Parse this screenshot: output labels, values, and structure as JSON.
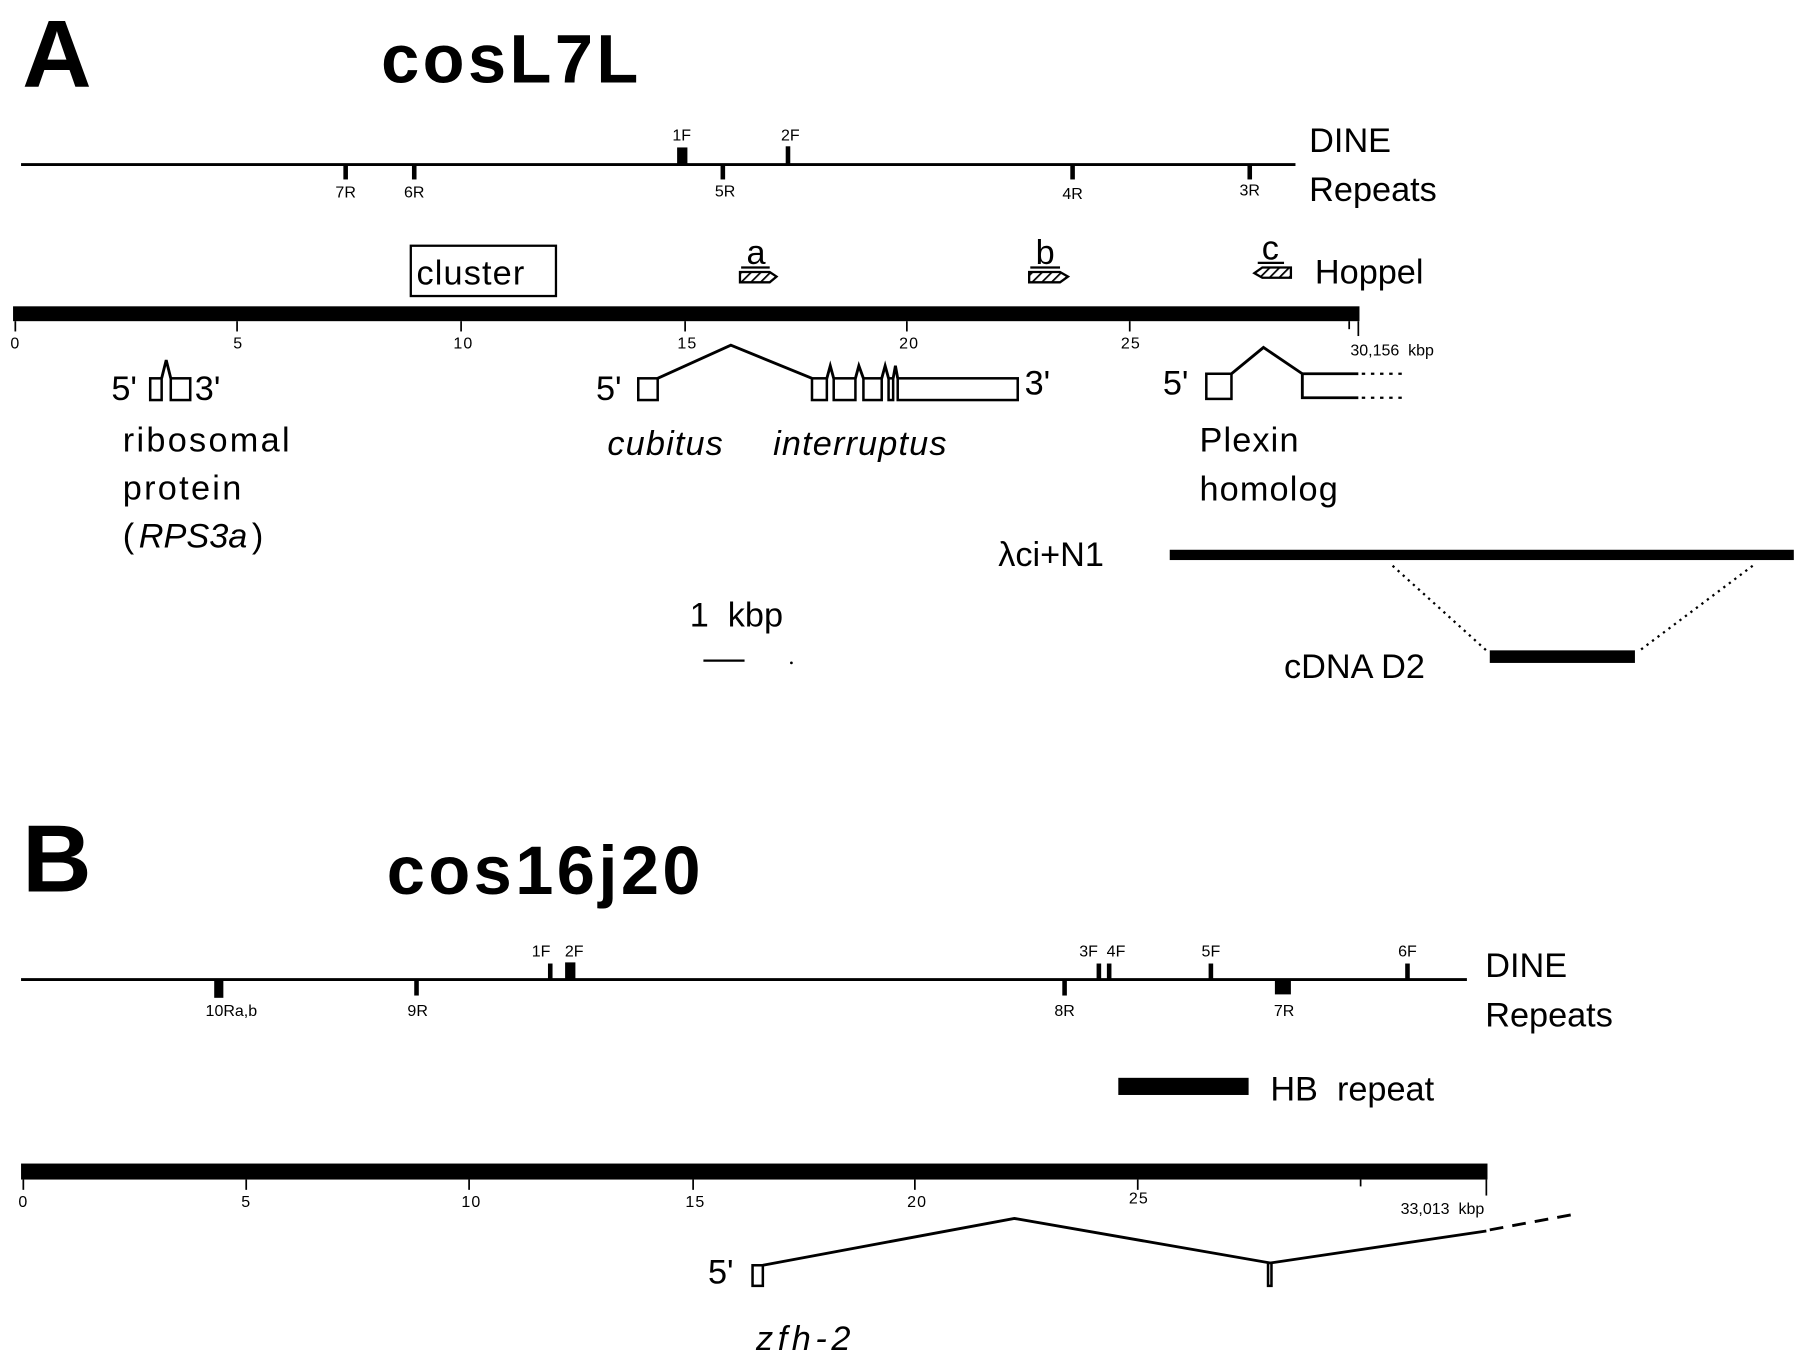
{
  "panel_a": {
    "letter": "A",
    "title": "cosL7L",
    "dine_label_1": "DINE",
    "dine_label_2": "Repeats",
    "dine_forward": [
      "1F",
      "2F"
    ],
    "dine_reverse": [
      "7R",
      "6R",
      "5R",
      "4R",
      "3R"
    ],
    "cluster_label": "cluster",
    "hoppel_label": "Hoppel",
    "hoppel_elements": [
      "a",
      "b",
      "c"
    ],
    "scale_ticks": [
      "0",
      "5",
      "10",
      "15",
      "20",
      "25"
    ],
    "scale_end": "30,156  kbp",
    "genes": {
      "rps_5": "5'",
      "rps_3": "3'",
      "rps_line1": "ribosomal",
      "rps_line2": "protein",
      "rps_paren_open": "(",
      "rps_name": "RPS3a",
      "rps_paren_close": ")",
      "ci_5": "5'",
      "ci_3": "3'",
      "ci_word1": "cubitus",
      "ci_word2": "interruptus",
      "plexin_5": "5'",
      "plexin_line1": "Plexin",
      "plexin_line2": "homolog"
    },
    "clone_label": "λci+N1",
    "cdna_label": "cDNA D2",
    "kbp_scale_label": "1  kbp"
  },
  "panel_b": {
    "letter": "B",
    "title": "cos16j20",
    "dine_label_1": "DINE",
    "dine_label_2": "Repeats",
    "dine_forward": [
      "1F",
      "2F",
      "3F",
      "4F",
      "5F",
      "6F"
    ],
    "dine_reverse": [
      "10Ra,b",
      "9R",
      "8R",
      "7R"
    ],
    "hb_label": "HB  repeat",
    "scale_ticks": [
      "0",
      "5",
      "10",
      "15",
      "20",
      "25"
    ],
    "scale_end": "33,013  kbp",
    "gene_5": "5'",
    "gene_name": "zfh-2"
  }
}
